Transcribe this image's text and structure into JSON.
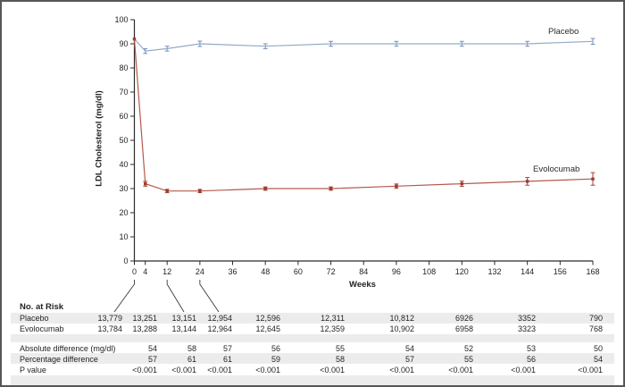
{
  "colors": {
    "placebo_line": "#94abc9",
    "placebo_error": "#6f8fba",
    "evolocumab_line": "#b4594c",
    "evolocumab_marker": "#9c3b30",
    "axis": "#2b2b2b",
    "text": "#231f20",
    "stripe": "#ececec"
  },
  "chart_data": {
    "type": "line",
    "title": "",
    "xlabel": "Weeks",
    "ylabel": "LDL Cholesterol (mg/dl)",
    "xlim": [
      0,
      168
    ],
    "ylim": [
      0,
      100
    ],
    "x_ticks": [
      0,
      4,
      12,
      24,
      36,
      48,
      60,
      72,
      84,
      96,
      108,
      120,
      132,
      144,
      156,
      168
    ],
    "y_ticks": [
      0,
      10,
      20,
      30,
      40,
      50,
      60,
      70,
      80,
      90,
      100
    ],
    "grid": false,
    "legend_position": "inline-end-labels",
    "series": [
      {
        "name": "Placebo",
        "color": "#94abc9",
        "error_color": "#6f8fba",
        "marker": "none",
        "x": [
          0,
          4,
          12,
          24,
          48,
          72,
          96,
          120,
          144,
          168
        ],
        "y": [
          92,
          87,
          88,
          90,
          89,
          90,
          90,
          90,
          90,
          91
        ],
        "err": [
          0,
          1,
          1,
          1.1,
          1,
          1,
          1,
          1,
          1,
          1.2
        ]
      },
      {
        "name": "Evolocumab",
        "color": "#b4594c",
        "error_color": "#a04338",
        "marker": "square",
        "marker_color": "#9c3b30",
        "x": [
          0,
          4,
          12,
          24,
          48,
          72,
          96,
          120,
          144,
          168
        ],
        "y": [
          92,
          32,
          29,
          29,
          30,
          30,
          31,
          32,
          33,
          34
        ],
        "err": [
          0,
          1,
          0.7,
          0.7,
          0.7,
          0.7,
          0.9,
          1.1,
          1.6,
          2.6
        ]
      }
    ]
  },
  "risk_table": {
    "title": "No. at Risk",
    "rows": [
      {
        "label": "Placebo",
        "values": [
          "13,779",
          "13,251",
          "13,151",
          "12,954",
          "12,596",
          "12,311",
          "10,812",
          "6926",
          "3352",
          "790"
        ]
      },
      {
        "label": "Evolocumab",
        "values": [
          "13,784",
          "13,288",
          "13,144",
          "12,964",
          "12,645",
          "12,359",
          "10,902",
          "6958",
          "3323",
          "768"
        ]
      }
    ]
  },
  "stats_table": {
    "rows": [
      {
        "label": "Absolute difference (mg/dl)",
        "values": [
          "54",
          "58",
          "57",
          "56",
          "55",
          "54",
          "52",
          "53",
          "50"
        ]
      },
      {
        "label": "Percentage difference",
        "values": [
          "57",
          "61",
          "61",
          "59",
          "58",
          "57",
          "55",
          "56",
          "54"
        ]
      },
      {
        "label": "P value",
        "values": [
          "<0.001",
          "<0.001",
          "<0.001",
          "<0.001",
          "<0.001",
          "<0.001",
          "<0.001",
          "<0.001",
          "<0.001"
        ]
      }
    ]
  }
}
